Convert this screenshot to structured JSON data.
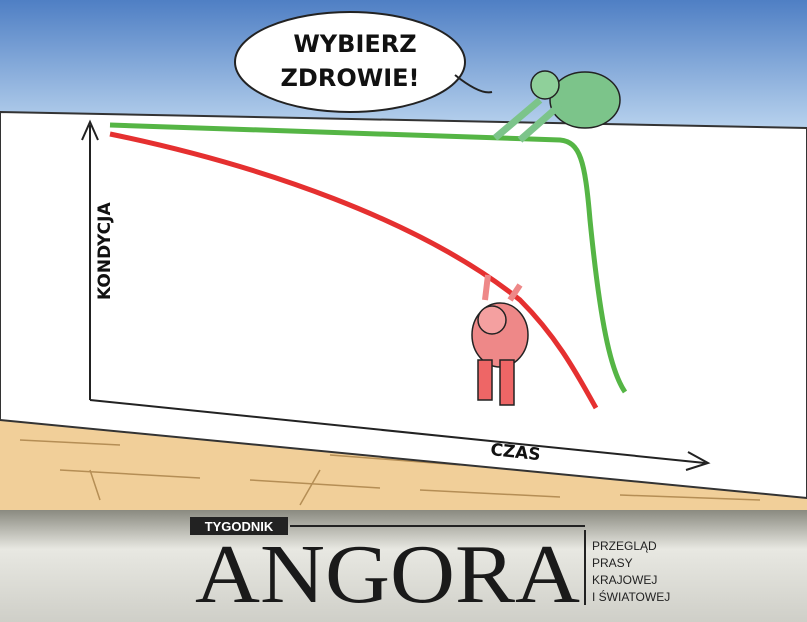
{
  "speech_bubble": {
    "lines": [
      "WYBIERZ",
      "ZDROWIE!"
    ]
  },
  "axes": {
    "y_label": "KONDYCJA",
    "x_label": "CZAS"
  },
  "masthead": {
    "tag": "TYGODNIK",
    "title": "ANGORA",
    "subtitle_lines": [
      "PRZEGLĄD",
      "PRASY",
      "KRAJOWEJ",
      "I ŚWIATOWEJ"
    ]
  }
}
